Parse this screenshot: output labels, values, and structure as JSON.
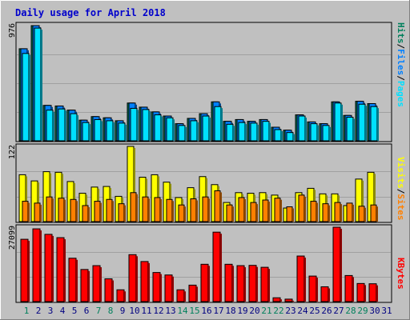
{
  "title": "Daily usage for April 2018",
  "colors": {
    "title": "#0000cc",
    "hits": "#00805c",
    "files": "#0080ff",
    "pages": "#00e0ff",
    "visits": "#ffff00",
    "sites": "#ff8000",
    "kbytes": "#ff0000",
    "panel": "#c0c0c0",
    "weekend_label": "#00805c",
    "weekday_label": "#000080"
  },
  "days": [
    "1",
    "2",
    "3",
    "4",
    "5",
    "6",
    "7",
    "8",
    "9",
    "10",
    "11",
    "12",
    "13",
    "14",
    "15",
    "16",
    "17",
    "18",
    "19",
    "20",
    "21",
    "22",
    "23",
    "24",
    "25",
    "26",
    "27",
    "28",
    "29",
    "30",
    "31"
  ],
  "weekend_days": [
    "1",
    "7",
    "8",
    "14",
    "15",
    "21",
    "22",
    "28",
    "29"
  ],
  "chart_data": [
    {
      "type": "bar",
      "panel": "hits-files-pages",
      "ymax": 976,
      "ymax_label": "976",
      "legend": {
        "pages": "Pages",
        "files": "Files",
        "hits": "Hits",
        "sep1": "/",
        "sep2": "/"
      },
      "series": [
        {
          "name": "Hits",
          "values": [
            780,
            976,
            300,
            295,
            260,
            175,
            205,
            195,
            170,
            320,
            285,
            245,
            210,
            145,
            190,
            230,
            330,
            165,
            180,
            165,
            180,
            115,
            90,
            220,
            160,
            145,
            330,
            215,
            335,
            315,
            0
          ]
        },
        {
          "name": "Files",
          "values": [
            780,
            976,
            300,
            295,
            260,
            175,
            205,
            195,
            170,
            320,
            285,
            245,
            210,
            145,
            190,
            230,
            330,
            165,
            180,
            165,
            180,
            115,
            90,
            220,
            160,
            145,
            330,
            215,
            335,
            315,
            0
          ]
        },
        {
          "name": "Pages",
          "values": [
            740,
            955,
            260,
            270,
            230,
            155,
            180,
            170,
            150,
            275,
            265,
            220,
            195,
            130,
            170,
            210,
            290,
            140,
            155,
            150,
            165,
            95,
            70,
            210,
            145,
            130,
            320,
            200,
            310,
            290,
            0
          ]
        }
      ]
    },
    {
      "type": "bar",
      "panel": "visits-sites",
      "ymax": 122,
      "ymax_label": "122",
      "legend": {
        "sites": "Sites",
        "visits": "Visits",
        "sep1": "/"
      },
      "series": [
        {
          "name": "Visits",
          "values": [
            76,
            66,
            81,
            80,
            65,
            46,
            56,
            57,
            41,
            122,
            72,
            76,
            64,
            39,
            55,
            73,
            60,
            31,
            47,
            46,
            47,
            43,
            22,
            47,
            54,
            45,
            45,
            26,
            69,
            80,
            0
          ]
        },
        {
          "name": "Sites",
          "values": [
            33,
            30,
            40,
            38,
            36,
            26,
            33,
            36,
            29,
            47,
            40,
            39,
            36,
            27,
            37,
            40,
            50,
            27,
            39,
            31,
            35,
            38,
            24,
            43,
            33,
            29,
            31,
            30,
            25,
            27,
            0
          ]
        }
      ]
    },
    {
      "type": "bar",
      "panel": "kbytes",
      "ymax": 27099,
      "ymax_label": "27099",
      "legend": {
        "kbytes": "KBytes"
      },
      "series": [
        {
          "name": "KBytes",
          "values": [
            22700,
            26500,
            24500,
            23300,
            15800,
            11700,
            13100,
            8300,
            4300,
            17100,
            14600,
            10600,
            9700,
            4300,
            6000,
            13600,
            25300,
            13600,
            13100,
            13200,
            12500,
            1400,
            900,
            16600,
            9300,
            5400,
            27099,
            9500,
            6600,
            6500,
            0
          ]
        }
      ]
    }
  ]
}
